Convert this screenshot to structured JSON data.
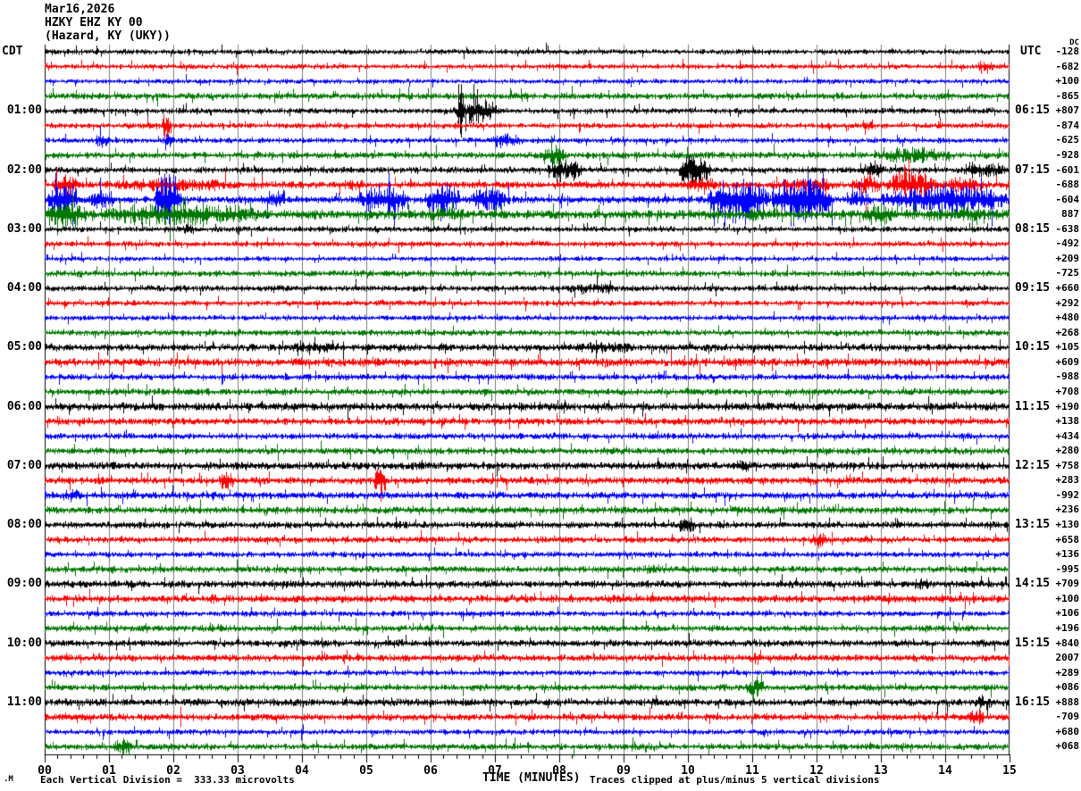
{
  "header": {
    "date": "Mar16,2026",
    "station": "HZKY EHZ KY 00",
    "location": "(Hazard, KY (UKY))"
  },
  "axes": {
    "left_label": "CDT",
    "right_label": "UTC",
    "dc_label": "DC",
    "xaxis_title": "TIME (MINUTES)"
  },
  "footer": {
    "corner_mark": ".M",
    "scale_note": "Each Vertical Division =  333.33 microvolts",
    "clip_note": "Traces clipped at plus/minus 5 vertical divisions"
  },
  "colors": {
    "trace_cycle": [
      "#000000",
      "#ff0000",
      "#0000ff",
      "#007700"
    ],
    "grid": "#7f7f7f",
    "frame": "#000000",
    "background": "#ffffff"
  },
  "chart_data": {
    "type": "line",
    "subtype": "helicorder-seismogram",
    "title": "Mar16,2026 HZKY EHZ KY 00 (Hazard, KY (UKY))",
    "xlabel": "TIME (MINUTES)",
    "x_range_minutes": [
      0,
      15
    ],
    "minute_labels": [
      "00",
      "01",
      "02",
      "03",
      "04",
      "05",
      "06",
      "07",
      "08",
      "09",
      "10",
      "11",
      "12",
      "13",
      "14",
      "15"
    ],
    "minor_ticks_per_minute": 5,
    "rows": 48,
    "row_duration_minutes": 15,
    "rows_per_hour_label": 4,
    "left_ticks_cdt": [
      "01:00",
      "02:00",
      "03:00",
      "04:00",
      "05:00",
      "06:00",
      "07:00",
      "08:00",
      "09:00",
      "10:00",
      "11:00"
    ],
    "right_ticks_utc": [
      "06:15",
      "07:15",
      "08:15",
      "09:15",
      "10:15",
      "11:15",
      "12:15",
      "13:15",
      "14:15",
      "15:15",
      "16:15"
    ],
    "dc_values": [
      "-128",
      "-682",
      "+100",
      "-865",
      "+807",
      "-874",
      "-625",
      "-928",
      "-601",
      "-688",
      "-604",
      "887",
      "-638",
      "-492",
      "+209",
      "-725",
      "+660",
      "+292",
      "+480",
      "+268",
      "+105",
      "+609",
      "-988",
      "+708",
      "+190",
      "+138",
      "+434",
      "+280",
      "+758",
      "+283",
      "-992",
      "+236",
      "+130",
      "+658",
      "+136",
      "-995",
      "+709",
      "+100",
      "+106",
      "+196",
      "+840",
      "2007",
      "+289",
      "+086",
      "+888",
      "-709",
      "+680",
      "+068"
    ],
    "microvolts_per_division": 333.33,
    "clip_divisions": 5,
    "grid_every_minutes": 1,
    "legend": "none",
    "traces": [
      {
        "a": 2.2,
        "e": []
      },
      {
        "a": 2.2,
        "e": [
          [
            14.5,
            14.75,
            7
          ]
        ]
      },
      {
        "a": 2.0,
        "e": []
      },
      {
        "a": 2.8,
        "e": []
      },
      {
        "a": 2.4,
        "e": [
          [
            6.35,
            7.05,
            11
          ],
          [
            6.42,
            6.52,
            26
          ]
        ]
      },
      {
        "a": 2.4,
        "e": [
          [
            1.82,
            1.97,
            13
          ],
          [
            12.7,
            12.9,
            5
          ]
        ]
      },
      {
        "a": 2.2,
        "e": [
          [
            0.78,
            1.02,
            7
          ],
          [
            1.85,
            2.02,
            6
          ],
          [
            6.85,
            7.45,
            6
          ],
          [
            13.2,
            13.4,
            4
          ]
        ]
      },
      {
        "a": 2.8,
        "e": [
          [
            7.7,
            8.1,
            9
          ],
          [
            12.9,
            14.2,
            7
          ]
        ]
      },
      {
        "a": 2.6,
        "e": [
          [
            7.8,
            8.35,
            11
          ],
          [
            9.85,
            10.35,
            15
          ],
          [
            12.6,
            13.1,
            6
          ],
          [
            14.2,
            14.95,
            7
          ]
        ]
      },
      {
        "a": 3.0,
        "e": [
          [
            0.1,
            0.55,
            9
          ],
          [
            1.0,
            3.0,
            6
          ],
          [
            4.6,
            5.0,
            5
          ],
          [
            9.9,
            10.5,
            6
          ],
          [
            11.3,
            12.3,
            7
          ],
          [
            12.55,
            13.0,
            9
          ],
          [
            13.05,
            13.85,
            13
          ],
          [
            14.0,
            14.6,
            8
          ]
        ]
      },
      {
        "a": 3.2,
        "e": [
          [
            0.05,
            0.5,
            16
          ],
          [
            0.7,
            1.1,
            9
          ],
          [
            1.72,
            2.12,
            24
          ],
          [
            3.4,
            3.75,
            8
          ],
          [
            4.85,
            5.65,
            13
          ],
          [
            5.9,
            6.45,
            15
          ],
          [
            6.6,
            7.25,
            11
          ],
          [
            10.3,
            11.25,
            20
          ],
          [
            11.3,
            12.25,
            22
          ],
          [
            12.5,
            12.85,
            10
          ],
          [
            13.0,
            15.0,
            13
          ]
        ]
      },
      {
        "a": 4.0,
        "e": [
          [
            0.0,
            0.65,
            13
          ],
          [
            0.8,
            3.4,
            10
          ],
          [
            5.9,
            6.6,
            7
          ],
          [
            10.85,
            11.3,
            6
          ],
          [
            12.7,
            13.25,
            9
          ],
          [
            13.4,
            15.0,
            6
          ]
        ]
      },
      {
        "a": 2.4,
        "e": [
          [
            2.15,
            2.32,
            8
          ]
        ]
      },
      {
        "a": 2.4,
        "e": []
      },
      {
        "a": 2.0,
        "e": []
      },
      {
        "a": 2.6,
        "e": []
      },
      {
        "a": 2.5,
        "e": [
          [
            8.0,
            9.0,
            5
          ]
        ]
      },
      {
        "a": 2.3,
        "e": []
      },
      {
        "a": 2.2,
        "e": []
      },
      {
        "a": 2.6,
        "e": []
      },
      {
        "a": 3.0,
        "e": [
          [
            3.7,
            4.7,
            5
          ],
          [
            8.0,
            9.3,
            5
          ]
        ]
      },
      {
        "a": 3.4,
        "e": []
      },
      {
        "a": 2.6,
        "e": []
      },
      {
        "a": 2.8,
        "e": []
      },
      {
        "a": 3.4,
        "e": []
      },
      {
        "a": 3.0,
        "e": []
      },
      {
        "a": 2.6,
        "e": []
      },
      {
        "a": 2.8,
        "e": []
      },
      {
        "a": 3.2,
        "e": [
          [
            10.7,
            11.05,
            6
          ]
        ]
      },
      {
        "a": 3.0,
        "e": [
          [
            2.7,
            2.95,
            11
          ],
          [
            5.1,
            5.3,
            13
          ]
        ]
      },
      {
        "a": 3.0,
        "e": [
          [
            0.25,
            0.6,
            6
          ]
        ]
      },
      {
        "a": 3.0,
        "e": []
      },
      {
        "a": 2.9,
        "e": [
          [
            9.85,
            10.1,
            8
          ]
        ]
      },
      {
        "a": 2.7,
        "e": [
          [
            11.9,
            12.15,
            7
          ]
        ]
      },
      {
        "a": 2.5,
        "e": []
      },
      {
        "a": 2.7,
        "e": [
          [
            9.3,
            9.55,
            5
          ]
        ]
      },
      {
        "a": 3.1,
        "e": [
          [
            13.5,
            13.75,
            6
          ]
        ]
      },
      {
        "a": 3.1,
        "e": [
          [
            2.5,
            2.7,
            5
          ]
        ]
      },
      {
        "a": 2.4,
        "e": []
      },
      {
        "a": 2.7,
        "e": []
      },
      {
        "a": 2.9,
        "e": []
      },
      {
        "a": 2.9,
        "e": [
          [
            10.9,
            11.15,
            6
          ]
        ]
      },
      {
        "a": 2.3,
        "e": []
      },
      {
        "a": 2.7,
        "e": [
          [
            10.9,
            11.2,
            9
          ]
        ]
      },
      {
        "a": 3.1,
        "e": [
          [
            14.45,
            14.7,
            7
          ]
        ]
      },
      {
        "a": 2.9,
        "e": [
          [
            14.35,
            14.6,
            8
          ]
        ]
      },
      {
        "a": 2.3,
        "e": []
      },
      {
        "a": 2.7,
        "e": [
          [
            1.05,
            1.35,
            8
          ]
        ]
      }
    ]
  }
}
